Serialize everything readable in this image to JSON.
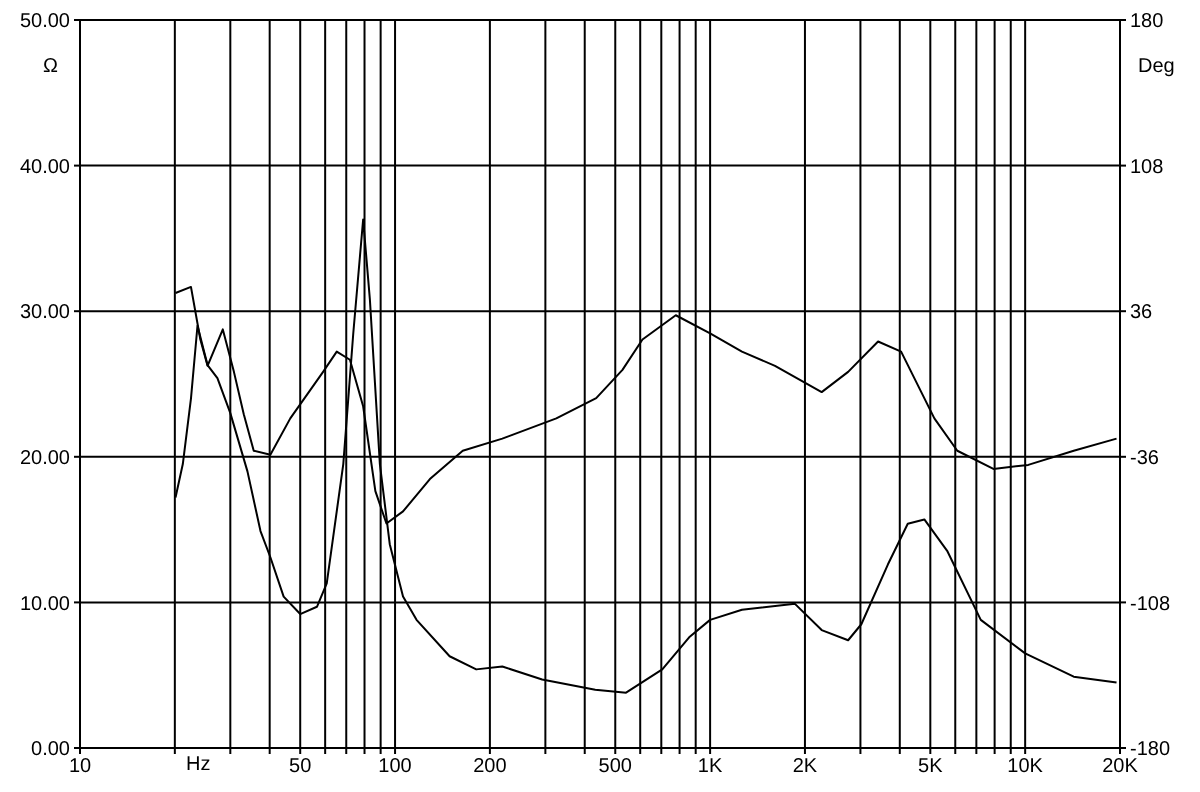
{
  "chart_data": {
    "type": "line",
    "xlabel": "Hz",
    "ylabel": "Ω",
    "y2label": "Deg",
    "log": "x",
    "grid": true,
    "marker": "none",
    "line_style": "solid",
    "xlim": [
      10,
      20000
    ],
    "xticks": [
      10,
      {
        "value": 20,
        "label": null
      },
      {
        "value": 30,
        "label": null
      },
      {
        "value": 40,
        "label": null
      },
      50,
      {
        "value": 60,
        "label": null
      },
      {
        "value": 70,
        "label": null
      },
      {
        "value": 80,
        "label": null
      },
      {
        "value": 90,
        "label": null
      },
      100,
      200,
      {
        "value": 300,
        "label": null
      },
      {
        "value": 400,
        "label": null
      },
      500,
      {
        "value": 600,
        "label": null
      },
      {
        "value": 700,
        "label": null
      },
      {
        "value": 800,
        "label": null
      },
      {
        "value": 900,
        "label": null
      },
      {
        "value": 1000,
        "label": "1K"
      },
      {
        "value": 2000,
        "label": "2K"
      },
      {
        "value": 3000,
        "label": null
      },
      {
        "value": 4000,
        "label": null
      },
      {
        "value": 5000,
        "label": "5K"
      },
      {
        "value": 6000,
        "label": null
      },
      {
        "value": 7000,
        "label": null
      },
      {
        "value": 8000,
        "label": null
      },
      {
        "value": 9000,
        "label": null
      },
      {
        "value": 10000,
        "label": "10K"
      },
      {
        "value": 20000,
        "label": "20K"
      }
    ],
    "ylim": [
      0,
      50
    ],
    "yticks": [
      {
        "value": 0,
        "label": "0.00"
      },
      {
        "value": 10,
        "label": "10.00"
      },
      {
        "value": 20,
        "label": "20.00"
      },
      {
        "value": 30,
        "label": "30.00"
      },
      {
        "value": 40,
        "label": "40.00"
      },
      {
        "value": 50,
        "label": "50.00"
      }
    ],
    "y2lim": [
      -180,
      180
    ],
    "y2ticks": [
      -180,
      -108,
      -36,
      36,
      108,
      180
    ],
    "series": [
      {
        "color": "#000000",
        "x": [
          20.1,
          21.2,
          22.5,
          23.6,
          25.4,
          27.3,
          30,
          34,
          37.4,
          40.2,
          44.3,
          50,
          56.5,
          60.7,
          68.5,
          73.7,
          79.2,
          83.2,
          89.5,
          96.2,
          106,
          117,
          149,
          181,
          219,
          293,
          432,
          541,
          705,
          858,
          1000,
          1262,
          1859,
          2260,
          2742,
          3020,
          3666,
          4240,
          4786,
          5670,
          7230,
          10000,
          14260,
          19500
        ],
        "values": [
          17.2,
          19.5,
          24,
          29,
          26.3,
          25.4,
          23,
          19,
          14.9,
          13.1,
          10.4,
          9.2,
          9.7,
          11.3,
          19.5,
          28.5,
          36.3,
          30.8,
          19.5,
          14,
          10.4,
          8.8,
          6.3,
          5.4,
          5.6,
          4.7,
          4.0,
          3.8,
          5.4,
          7.6,
          8.8,
          9.5,
          9.9,
          8.1,
          7.4,
          8.5,
          12.6,
          15.4,
          15.7,
          13.5,
          8.8,
          6.5,
          4.9,
          4.5
        ]
      },
      {
        "color": "#000000",
        "axis": "y2",
        "x": [
          20.1,
          22.5,
          24.1,
          25.4,
          28.4,
          30.8,
          33.1,
          35.6,
          40.2,
          46.5,
          59.1,
          65.3,
          71.9,
          79.2,
          86.6,
          93.9,
          106,
          129,
          164,
          219,
          325,
          435,
          527,
          610,
          778,
          1000,
          1262,
          1607,
          2260,
          2742,
          3413,
          4039,
          5150,
          6090,
          7930,
          10230,
          14260,
          19500
        ],
        "values": [
          45,
          48,
          22,
          9,
          27,
          6,
          -15,
          -33,
          -35,
          -17,
          6,
          16,
          12,
          -11,
          -53,
          -69,
          -63,
          -47,
          -33,
          -27,
          -17,
          -7,
          7,
          22,
          34,
          25,
          16,
          9,
          -4,
          6,
          21,
          16,
          -17,
          -33,
          -42,
          -40,
          -33,
          -27
        ]
      }
    ]
  }
}
